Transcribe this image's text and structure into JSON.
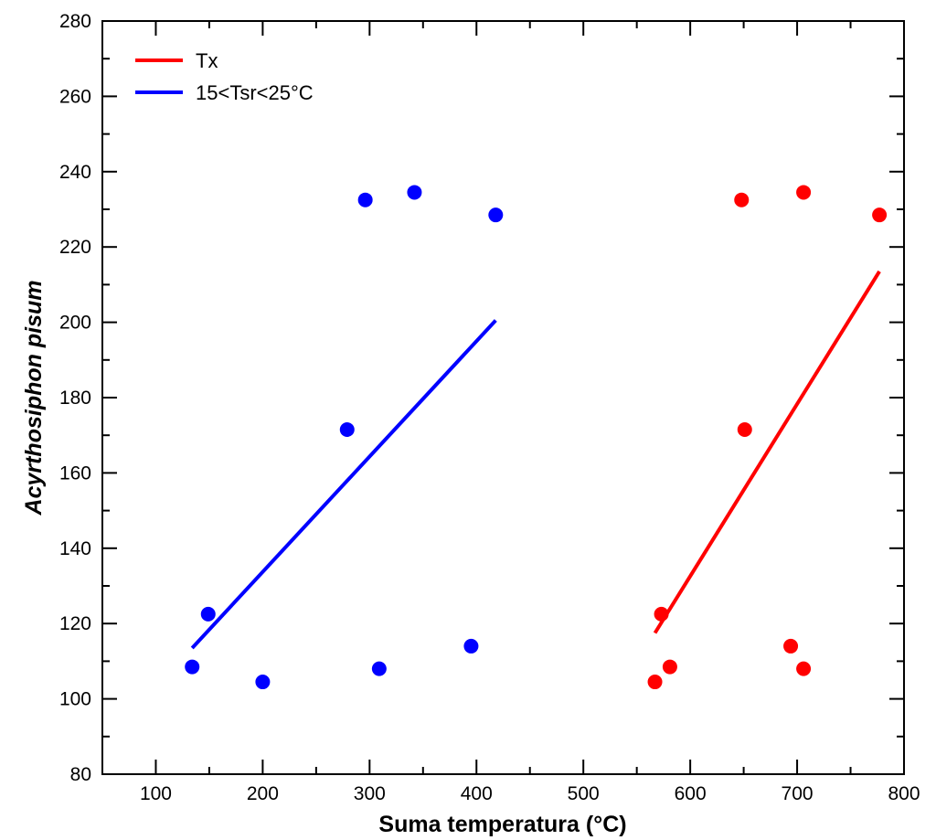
{
  "chart_data": {
    "type": "scatter",
    "title": "",
    "xlabel": "Suma temperatura (°C)",
    "ylabel": "Acyrthosiphon pisum",
    "xlim": [
      50,
      800
    ],
    "ylim": [
      80,
      280
    ],
    "x_ticks": [
      "100",
      "200",
      "300",
      "400",
      "500",
      "600",
      "700",
      "800"
    ],
    "y_ticks": [
      "80",
      "100",
      "120",
      "140",
      "160",
      "180",
      "200",
      "220",
      "240",
      "260",
      "280"
    ],
    "grid": false,
    "legend_position": "top-left",
    "series": [
      {
        "name": "Tx",
        "color": "#ff0000",
        "points": [
          {
            "x": 567,
            "y": 104.5
          },
          {
            "x": 573,
            "y": 122.5
          },
          {
            "x": 581,
            "y": 108.5
          },
          {
            "x": 648,
            "y": 232.5
          },
          {
            "x": 651,
            "y": 171.5
          },
          {
            "x": 694,
            "y": 114
          },
          {
            "x": 706,
            "y": 234.5
          },
          {
            "x": 706,
            "y": 108
          },
          {
            "x": 777,
            "y": 228.5
          }
        ],
        "fit_line": {
          "x": [
            567,
            777
          ],
          "y": [
            117.5,
            213.5
          ]
        }
      },
      {
        "name": "15<Tsr<25°C",
        "color": "#0000ff",
        "points": [
          {
            "x": 134,
            "y": 108.5
          },
          {
            "x": 149,
            "y": 122.5
          },
          {
            "x": 200,
            "y": 104.5
          },
          {
            "x": 279,
            "y": 171.5
          },
          {
            "x": 296,
            "y": 232.5
          },
          {
            "x": 309,
            "y": 108
          },
          {
            "x": 342,
            "y": 234.5
          },
          {
            "x": 395,
            "y": 114
          },
          {
            "x": 418,
            "y": 228.5
          }
        ],
        "fit_line": {
          "x": [
            134,
            418
          ],
          "y": [
            113.5,
            200.5
          ]
        }
      }
    ]
  }
}
